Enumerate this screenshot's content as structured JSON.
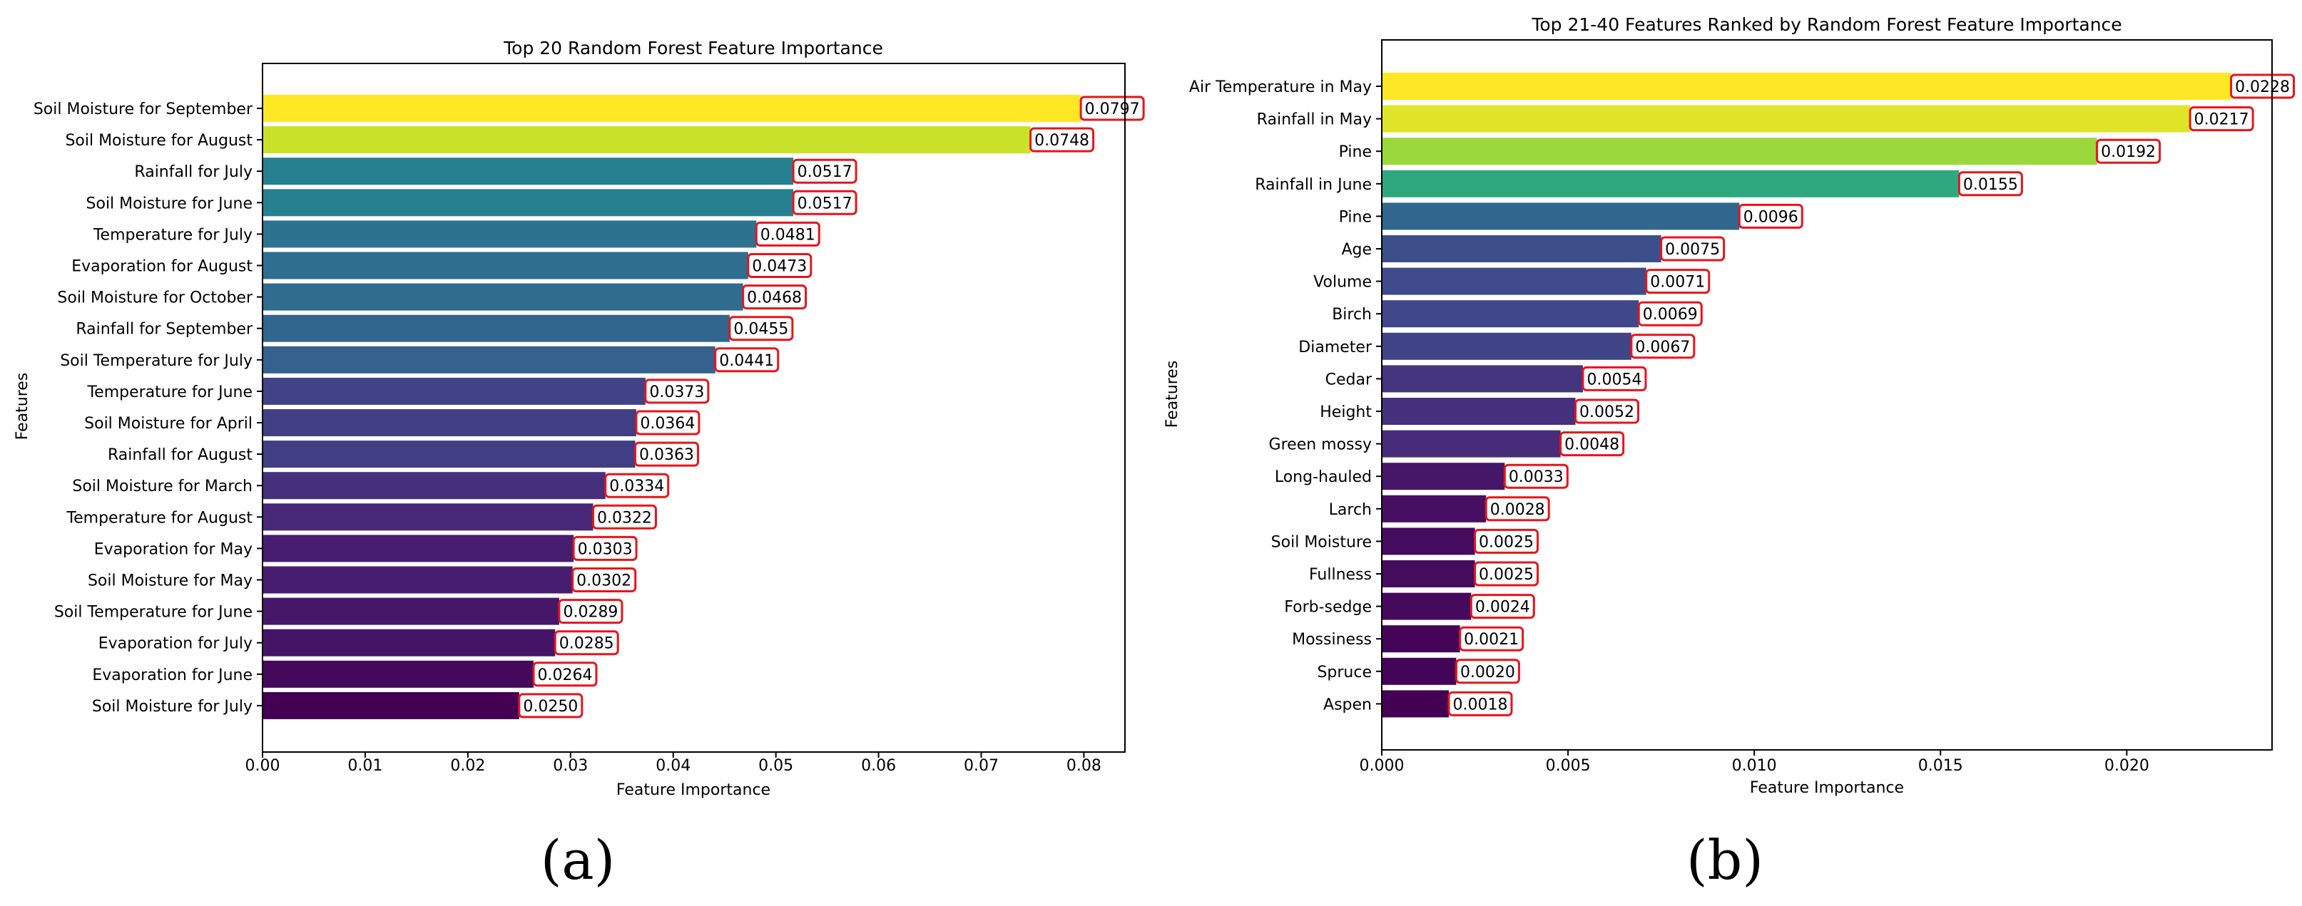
{
  "panels": [
    {
      "label": "(a)"
    },
    {
      "label": "(b)"
    }
  ],
  "colors": {
    "label_box_stroke": "#e8141a",
    "axis": "#000000",
    "background": "#ffffff",
    "colormap": [
      "#440154",
      "#482777",
      "#3f4a8a",
      "#31678e",
      "#26838f",
      "#1f9d8a",
      "#6cce5a",
      "#b6de2b",
      "#fee825"
    ]
  },
  "chart_data": [
    {
      "type": "bar",
      "orientation": "horizontal",
      "title": "Top 20 Random Forest Feature Importance",
      "xlabel": "Feature Importance",
      "ylabel": "Features",
      "xlim": [
        0,
        0.084
      ],
      "xticks": [
        0.0,
        0.01,
        0.02,
        0.03,
        0.04,
        0.05,
        0.06,
        0.07,
        0.08
      ],
      "xtick_labels": [
        "0.00",
        "0.01",
        "0.02",
        "0.03",
        "0.04",
        "0.05",
        "0.06",
        "0.07",
        "0.08"
      ],
      "grid": false,
      "categories": [
        "Soil Moisture for September",
        "Soil Moisture for August",
        "Rainfall for July",
        "Soil Moisture for June",
        "Temperature for July",
        "Evaporation for August",
        "Soil Moisture for October",
        "Rainfall for September",
        "Soil Temperature for July",
        "Temperature for June",
        "Soil Moisture for April",
        "Rainfall for August",
        "Soil Moisture for March",
        "Temperature for August",
        "Evaporation for May",
        "Soil Moisture for May",
        "Soil Temperature for June",
        "Evaporation for July",
        "Evaporation for June",
        "Soil Moisture for July"
      ],
      "values": [
        0.0797,
        0.0748,
        0.0517,
        0.0517,
        0.0481,
        0.0473,
        0.0468,
        0.0455,
        0.0441,
        0.0373,
        0.0364,
        0.0363,
        0.0334,
        0.0322,
        0.0303,
        0.0302,
        0.0289,
        0.0285,
        0.0264,
        0.025
      ],
      "value_labels": [
        "0.0797",
        "0.0748",
        "0.0517",
        "0.0517",
        "0.0481",
        "0.0473",
        "0.0468",
        "0.0455",
        "0.0441",
        "0.0373",
        "0.0364",
        "0.0363",
        "0.0334",
        "0.0322",
        "0.0303",
        "0.0302",
        "0.0289",
        "0.0285",
        "0.0264",
        "0.0250"
      ]
    },
    {
      "type": "bar",
      "orientation": "horizontal",
      "title": "Top 21-40 Features Ranked by Random Forest Feature Importance",
      "xlabel": "Feature Importance",
      "ylabel": "Features",
      "xlim": [
        0,
        0.0239
      ],
      "xticks": [
        0.0,
        0.005,
        0.01,
        0.015,
        0.02
      ],
      "xtick_labels": [
        "0.000",
        "0.005",
        "0.010",
        "0.015",
        "0.020"
      ],
      "grid": false,
      "categories": [
        "Air Temperature in May",
        "Rainfall in May",
        "Pine",
        "Rainfall in June",
        "Pine",
        "Age",
        "Volume",
        "Birch",
        "Diameter",
        "Cedar",
        "Height",
        "Green mossy",
        "Long-hauled",
        "Larch",
        "Soil Moisture",
        "Fullness",
        "Forb-sedge",
        "Mossiness",
        "Spruce",
        "Aspen"
      ],
      "values": [
        0.0228,
        0.0217,
        0.0192,
        0.0155,
        0.0096,
        0.0075,
        0.0071,
        0.0069,
        0.0067,
        0.0054,
        0.0052,
        0.0048,
        0.0033,
        0.0028,
        0.0025,
        0.0025,
        0.0024,
        0.0021,
        0.002,
        0.0018
      ],
      "value_labels": [
        "0.0228",
        "0.0217",
        "0.0192",
        "0.0155",
        "0.0096",
        "0.0075",
        "0.0071",
        "0.0069",
        "0.0067",
        "0.0054",
        "0.0052",
        "0.0048",
        "0.0033",
        "0.0028",
        "0.0025",
        "0.0025",
        "0.0024",
        "0.0021",
        "0.0020",
        "0.0018"
      ]
    }
  ]
}
